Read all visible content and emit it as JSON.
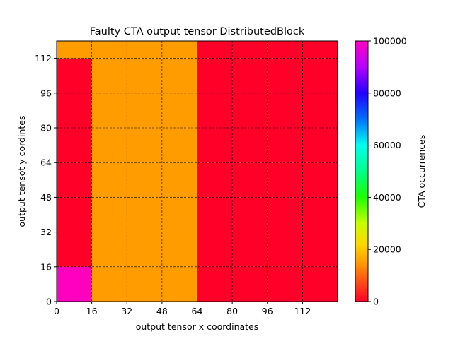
{
  "chart_data": {
    "type": "heatmap",
    "title": "Faulty CTA output tensor DistributedBlock",
    "xlabel": "output tensor x coordinates",
    "ylabel": "output tensot y cordintes",
    "xlim": [
      0,
      128
    ],
    "ylim": [
      0,
      120
    ],
    "xticks": [
      0,
      16,
      32,
      48,
      64,
      80,
      96,
      112
    ],
    "yticks": [
      0,
      16,
      32,
      48,
      64,
      80,
      96,
      112
    ],
    "grid": true,
    "cell_width": 16,
    "cell_height": 16,
    "row_starts": [
      0,
      16,
      32,
      48,
      64,
      80,
      96,
      112
    ],
    "col_starts": [
      0,
      16,
      32,
      48,
      64,
      80,
      96,
      112
    ],
    "values": [
      [
        100000,
        15000,
        15000,
        15000,
        0,
        0,
        0,
        0
      ],
      [
        0,
        15000,
        15000,
        15000,
        0,
        0,
        0,
        0
      ],
      [
        0,
        15000,
        15000,
        15000,
        0,
        0,
        0,
        0
      ],
      [
        0,
        15000,
        15000,
        15000,
        0,
        0,
        0,
        0
      ],
      [
        0,
        15000,
        15000,
        15000,
        0,
        0,
        0,
        0
      ],
      [
        0,
        15000,
        15000,
        15000,
        0,
        0,
        0,
        0
      ],
      [
        0,
        15000,
        15000,
        15000,
        0,
        0,
        0,
        0
      ],
      [
        15000,
        15000,
        15000,
        15000,
        0,
        0,
        0,
        0
      ]
    ],
    "colorbar": {
      "label": "CTA occurrences",
      "min": 0,
      "max": 100000,
      "ticks": [
        0,
        20000,
        40000,
        60000,
        80000,
        100000
      ],
      "colormap": "gist_rainbow_r",
      "stops": [
        {
          "pos": 0.0,
          "color": "#ff0029"
        },
        {
          "pos": 0.15,
          "color": "#ff9c00"
        },
        {
          "pos": 0.22,
          "color": "#ffd800"
        },
        {
          "pos": 0.3,
          "color": "#c6ff00"
        },
        {
          "pos": 0.4,
          "color": "#1cff00"
        },
        {
          "pos": 0.5,
          "color": "#00ff8a"
        },
        {
          "pos": 0.6,
          "color": "#00ffee"
        },
        {
          "pos": 0.7,
          "color": "#0070ff"
        },
        {
          "pos": 0.8,
          "color": "#2400ff"
        },
        {
          "pos": 0.9,
          "color": "#b400ff"
        },
        {
          "pos": 1.0,
          "color": "#ff00bf"
        }
      ]
    }
  }
}
